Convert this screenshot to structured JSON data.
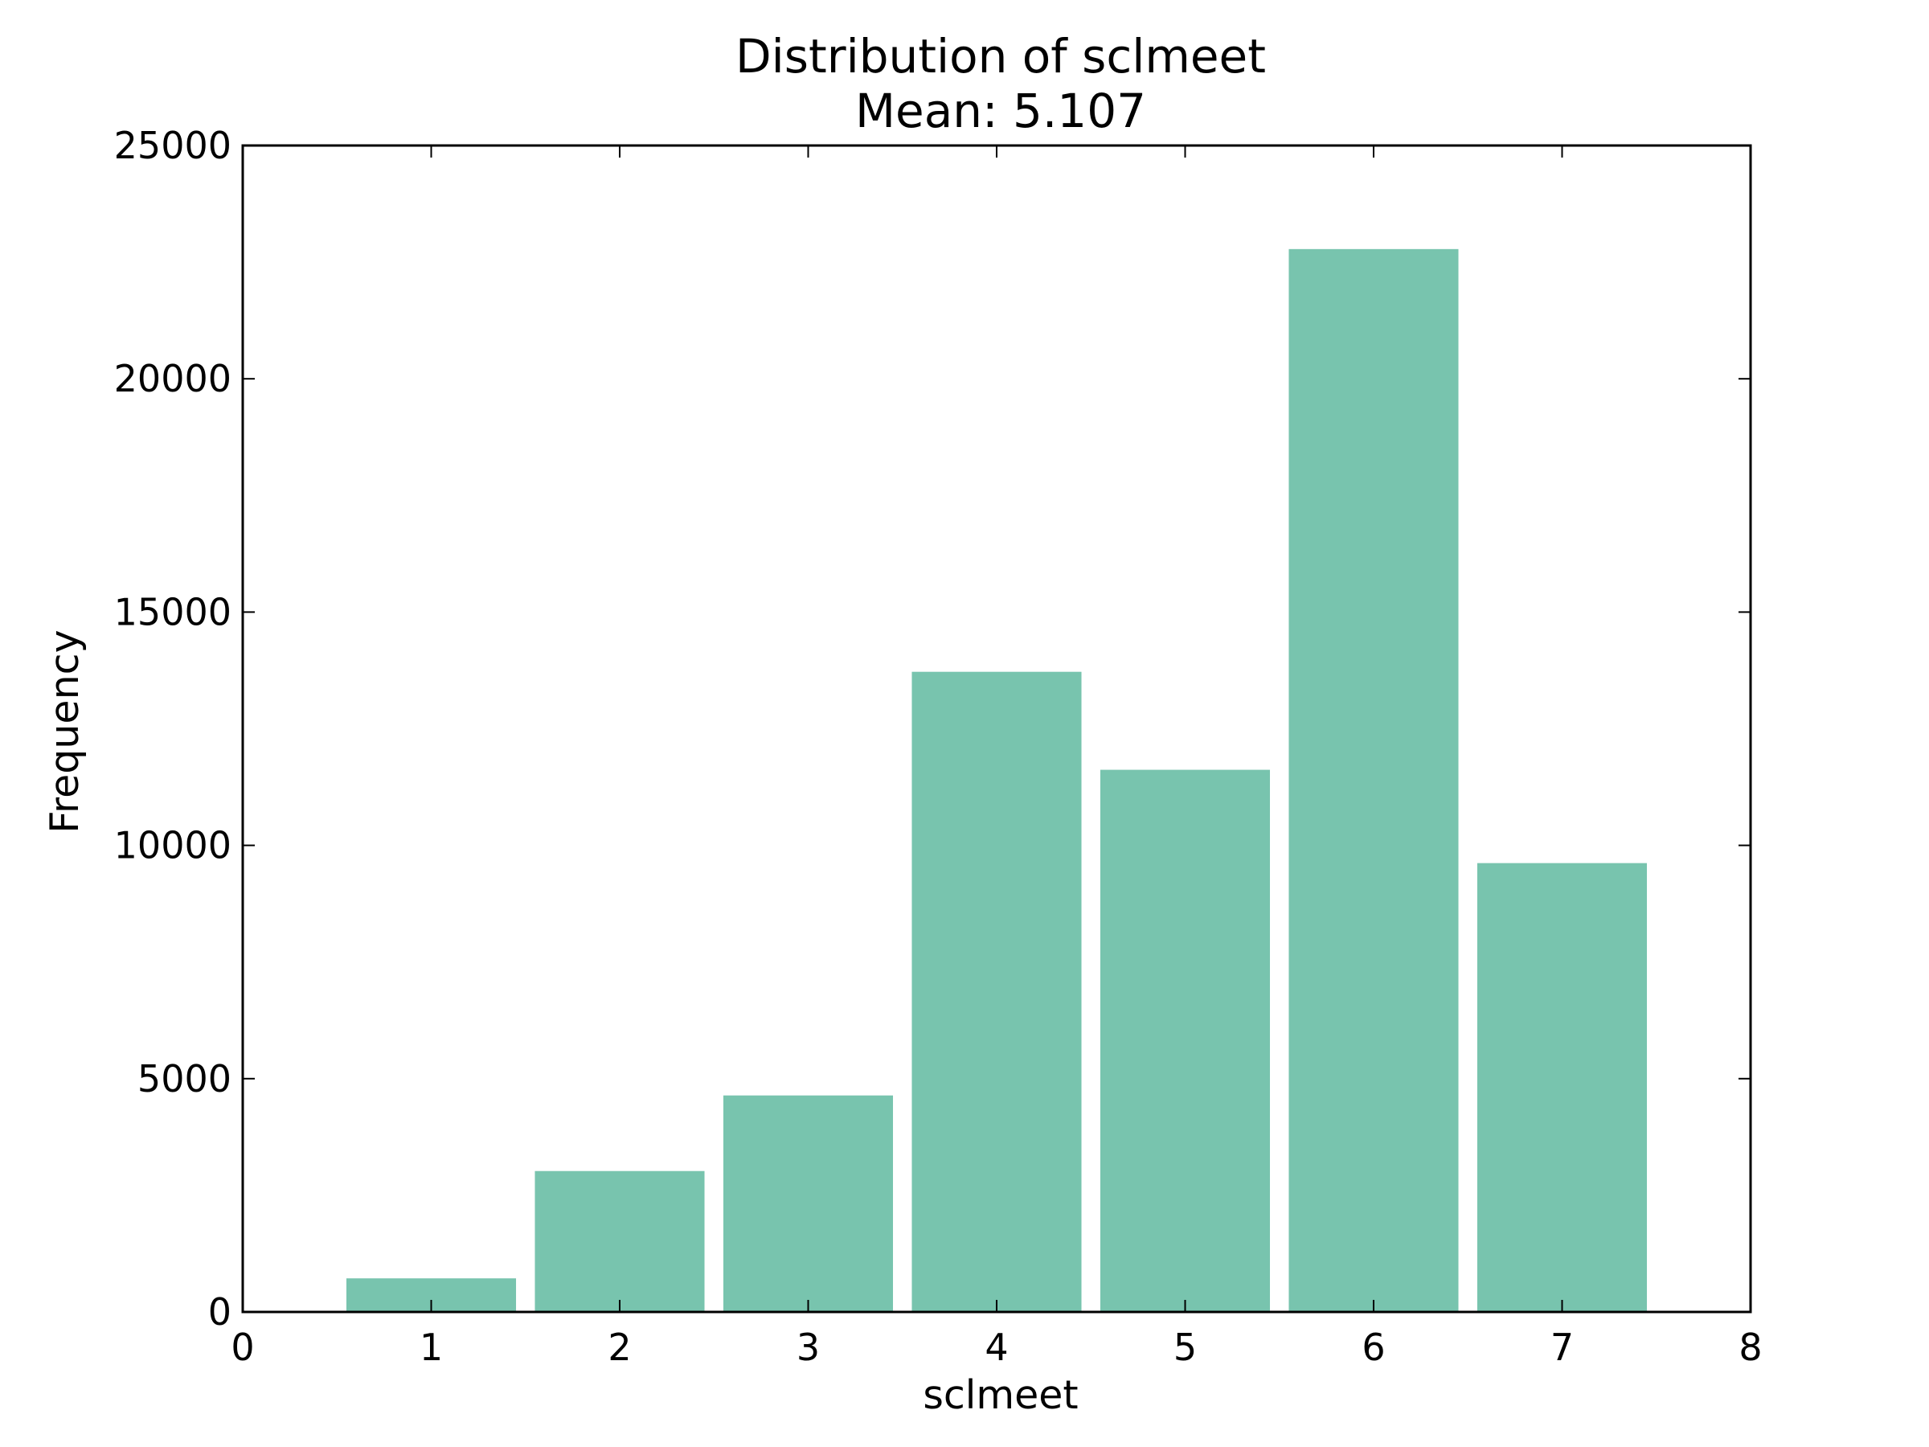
{
  "chart_data": {
    "type": "bar",
    "title": "Distribution of sclmeet",
    "subtitle": "Mean: 5.107",
    "xlabel": "sclmeet",
    "ylabel": "Frequency",
    "x": [
      1,
      2,
      3,
      4,
      5,
      6,
      7
    ],
    "values": [
      720,
      3020,
      4640,
      13720,
      11620,
      22780,
      9620
    ],
    "bar_width": 0.9,
    "xlim": [
      0,
      8
    ],
    "ylim": [
      0,
      25000
    ],
    "xticks": [
      0,
      1,
      2,
      3,
      4,
      5,
      6,
      7,
      8
    ],
    "xtick_labels": [
      "0",
      "1",
      "2",
      "3",
      "4",
      "5",
      "6",
      "7",
      "8"
    ],
    "yticks": [
      0,
      5000,
      10000,
      15000,
      20000,
      25000
    ],
    "ytick_labels": [
      "0",
      "5000",
      "10000",
      "15000",
      "20000",
      "25000"
    ],
    "grid": false,
    "legend": "none",
    "bar_color": "#78c4ae",
    "axis_color": "#000000"
  }
}
